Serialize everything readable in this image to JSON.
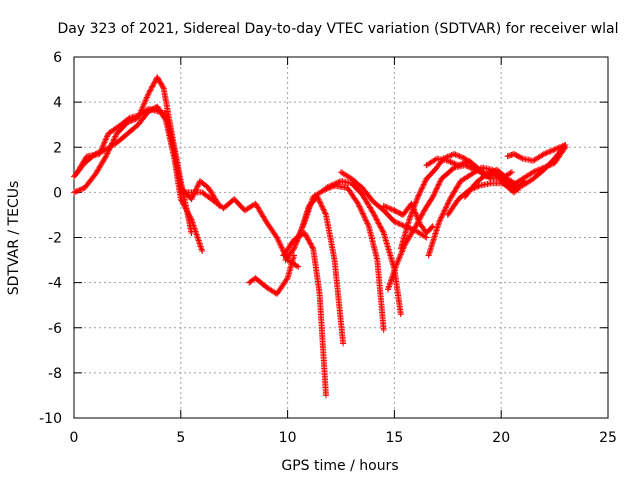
{
  "chart_data": {
    "type": "scatter",
    "title": "Day 323 of 2021, Sidereal Day-to-day VTEC variation (SDTVAR) for receiver wlal",
    "xlabel": "GPS time / hours",
    "ylabel": "SDTVAR / TECUs",
    "xlim": [
      0,
      25
    ],
    "ylim": [
      -10,
      6
    ],
    "xticks": [
      0,
      5,
      10,
      15,
      20,
      25
    ],
    "yticks": [
      -10,
      -8,
      -6,
      -4,
      -2,
      0,
      2,
      4,
      6
    ],
    "grid": true,
    "legend": "none",
    "marker": "+",
    "color": "#ff0000",
    "series": [
      {
        "x": [
          0.0,
          0.5,
          1.0,
          1.5,
          2.0,
          2.5,
          3.0,
          3.5,
          3.9,
          4.3,
          4.7,
          5.0,
          5.5,
          6.0
        ],
        "y": [
          0.7,
          1.3,
          1.7,
          1.9,
          2.2,
          2.6,
          3.0,
          3.6,
          3.8,
          3.2,
          1.5,
          -0.3,
          -1.2,
          -2.6
        ]
      },
      {
        "x": [
          0.0,
          0.5,
          1.0,
          1.5,
          2.0,
          2.5,
          3.0,
          3.5,
          3.9,
          4.2,
          4.6,
          5.0,
          5.5
        ],
        "y": [
          0.0,
          0.2,
          0.8,
          1.6,
          2.6,
          3.1,
          3.3,
          4.4,
          5.1,
          4.6,
          2.5,
          0.5,
          -1.8
        ]
      },
      {
        "x": [
          0.1,
          0.6,
          1.2,
          1.6,
          2.2,
          2.6,
          3.0,
          3.5,
          3.9,
          4.3,
          4.7,
          5.0,
          5.5,
          5.9,
          6.3,
          6.8
        ],
        "y": [
          0.8,
          1.6,
          1.7,
          2.6,
          3.0,
          3.3,
          3.4,
          3.7,
          3.6,
          3.5,
          1.8,
          0.2,
          -0.3,
          0.5,
          0.2,
          -0.6
        ]
      },
      {
        "x": [
          5.0,
          6.0,
          7.0,
          7.5,
          8.0,
          8.5,
          9.0,
          9.5,
          10.0,
          10.5
        ],
        "y": [
          0.0,
          0.0,
          -0.7,
          -0.3,
          -0.8,
          -0.5,
          -1.3,
          -2.0,
          -3.0,
          -3.3
        ]
      },
      {
        "x": [
          8.2,
          8.5,
          9.0,
          9.5,
          10.0,
          10.3
        ],
        "y": [
          -4.0,
          -3.8,
          -4.2,
          -4.5,
          -3.8,
          -2.8
        ]
      },
      {
        "x": [
          9.8,
          10.3,
          10.8,
          11.2,
          11.5,
          11.8
        ],
        "y": [
          -2.8,
          -2.1,
          -1.8,
          -2.5,
          -4.5,
          -9.0
        ]
      },
      {
        "x": [
          9.9,
          10.3,
          10.7,
          11.0,
          11.4,
          11.8,
          12.2,
          12.6
        ],
        "y": [
          -3.0,
          -2.5,
          -1.5,
          -0.6,
          -0.2,
          -1.0,
          -3.0,
          -6.7
        ]
      },
      {
        "x": [
          10.4,
          10.8,
          11.2,
          11.7,
          12.2,
          12.8,
          13.3,
          13.8,
          14.2,
          14.5
        ],
        "y": [
          -2.2,
          -1.3,
          -0.2,
          0.1,
          0.3,
          0.2,
          -0.5,
          -1.5,
          -3.0,
          -6.1
        ]
      },
      {
        "x": [
          11.8,
          12.5,
          13.0,
          13.5,
          14.0,
          14.5,
          15.0,
          15.3
        ],
        "y": [
          0.2,
          0.5,
          0.4,
          -0.1,
          -0.9,
          -1.8,
          -3.4,
          -5.4
        ]
      },
      {
        "x": [
          12.5,
          13.0,
          13.5,
          14.0,
          14.5,
          15.0,
          15.5,
          16.0,
          16.5
        ],
        "y": [
          0.9,
          0.6,
          0.2,
          -0.4,
          -0.8,
          -1.3,
          -1.5,
          -1.7,
          -2.0
        ]
      },
      {
        "x": [
          14.5,
          15.0,
          15.4,
          15.8,
          16.2,
          16.5,
          16.8
        ],
        "y": [
          -0.6,
          -0.8,
          -1.0,
          -0.5,
          -1.4,
          -1.8,
          -1.5
        ]
      },
      {
        "x": [
          14.7,
          15.1,
          15.5,
          16.0,
          16.4,
          16.8,
          17.2,
          17.8,
          18.3,
          18.8,
          19.3,
          19.8,
          20.2,
          20.6,
          21.0,
          21.5,
          22.0,
          22.5,
          23.0
        ],
        "y": [
          -4.3,
          -3.2,
          -2.3,
          -1.5,
          -0.8,
          -0.2,
          0.6,
          1.1,
          1.2,
          1.0,
          0.8,
          0.9,
          0.6,
          0.2,
          0.3,
          0.6,
          1.0,
          1.5,
          2.1
        ]
      },
      {
        "x": [
          15.3,
          15.7,
          16.1,
          16.5,
          16.9,
          17.3,
          17.8,
          18.3,
          18.8,
          19.3,
          19.8,
          20.3,
          20.8
        ],
        "y": [
          -2.5,
          -1.2,
          -0.2,
          0.6,
          1.0,
          1.5,
          1.7,
          1.5,
          1.1,
          0.7,
          0.8,
          0.5,
          0.1
        ]
      },
      {
        "x": [
          16.6,
          17.1,
          17.6,
          18.1,
          18.6,
          19.1,
          19.6,
          20.1,
          20.6,
          21.1
        ],
        "y": [
          -2.8,
          -1.3,
          -0.3,
          0.5,
          0.8,
          1.1,
          1.0,
          0.4,
          0.0,
          0.5
        ]
      },
      {
        "x": [
          16.5,
          17.0,
          17.5,
          18.0,
          18.5,
          19.0,
          19.5,
          20.0,
          20.5
        ],
        "y": [
          1.2,
          1.5,
          1.4,
          1.2,
          1.4,
          1.0,
          0.6,
          0.6,
          0.9
        ]
      },
      {
        "x": [
          17.5,
          18.0,
          18.5,
          19.0,
          19.5,
          20.0,
          20.5,
          21.0,
          21.5,
          22.0,
          22.5,
          23.0
        ],
        "y": [
          -1.0,
          -0.3,
          0.1,
          0.3,
          0.4,
          0.4,
          0.3,
          0.6,
          0.9,
          1.1,
          1.3,
          2.0
        ]
      },
      {
        "x": [
          18.3,
          18.8,
          19.3,
          19.8,
          20.3,
          20.8
        ],
        "y": [
          -0.2,
          0.4,
          0.8,
          1.0,
          0.6,
          0.3
        ]
      },
      {
        "x": [
          20.3,
          20.6,
          21.0,
          21.5,
          22.0,
          22.5,
          23.0
        ],
        "y": [
          1.6,
          1.7,
          1.5,
          1.4,
          1.7,
          1.9,
          2.1
        ]
      }
    ]
  }
}
